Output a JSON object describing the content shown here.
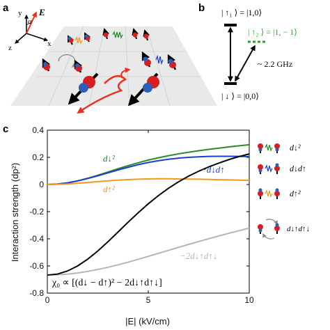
{
  "panels": {
    "a": "a",
    "b": "b",
    "c": "c"
  },
  "panel_a": {
    "axes": {
      "y": "y",
      "z": "z",
      "x": "x",
      "alpha": "α",
      "field": "E"
    }
  },
  "panel_b": {
    "state_up1": "| ↑₁ ⟩ = |1,0⟩",
    "state_up2": "| ↑₂ ⟩ = |1, − 1⟩",
    "state_down": "| ↓ ⟩ = |0,0⟩",
    "frequency": "~ 2.2 GHz",
    "accent_color": "#22aa22"
  },
  "legend_side": {
    "items": [
      {
        "label": "d↓²",
        "wave_color": "#2a8a2a"
      },
      {
        "label": "d↓d↑",
        "wave_color": "#1a3fd0"
      },
      {
        "label": "d↑²",
        "wave_color": "#f29a1e"
      },
      {
        "label": "d↓↑d↑↓",
        "wave_color": "#999999"
      }
    ]
  },
  "chart_data": {
    "type": "line",
    "xlabel": "|E| (kV/cm)",
    "ylabel": "Interaction strength (dp²)",
    "xlim": [
      0,
      10
    ],
    "ylim": [
      -0.8,
      0.4
    ],
    "xticks": [
      "0",
      "5",
      "10"
    ],
    "yticks": [
      "-0.8",
      "-0.6",
      "-0.4",
      "-0.2",
      "0",
      "0.2",
      "0.4"
    ],
    "grid": false,
    "formula": "χ₀ ∝ [(d↓ − d↑)² − 2d↓↑d↑↓]",
    "x": [
      0,
      0.5,
      1,
      1.5,
      2,
      2.5,
      3,
      3.5,
      4,
      4.5,
      5,
      5.5,
      6,
      6.5,
      7,
      7.5,
      8,
      8.5,
      9,
      9.5,
      10
    ],
    "series": [
      {
        "name": "d↓²",
        "color": "#2a8a2a",
        "values": [
          0,
          0.003,
          0.012,
          0.027,
          0.046,
          0.068,
          0.092,
          0.116,
          0.139,
          0.16,
          0.18,
          0.197,
          0.212,
          0.226,
          0.238,
          0.249,
          0.259,
          0.268,
          0.277,
          0.285,
          0.293
        ]
      },
      {
        "name": "−d↓d↑",
        "color": "#1a3fd0",
        "values": [
          0,
          0.003,
          0.012,
          0.026,
          0.044,
          0.064,
          0.086,
          0.107,
          0.127,
          0.146,
          0.162,
          0.175,
          0.186,
          0.194,
          0.2,
          0.204,
          0.207,
          0.208,
          0.208,
          0.207,
          0.205
        ]
      },
      {
        "name": "d↑²",
        "color": "#f29a1e",
        "values": [
          0,
          0.001,
          0.004,
          0.009,
          0.015,
          0.021,
          0.027,
          0.032,
          0.036,
          0.039,
          0.041,
          0.042,
          0.042,
          0.041,
          0.04,
          0.039,
          0.037,
          0.035,
          0.034,
          0.032,
          0.03
        ]
      },
      {
        "name": "−2d↓↑d↑↓",
        "color": "#b5b5b5",
        "values": [
          -0.667,
          -0.665,
          -0.66,
          -0.652,
          -0.64,
          -0.626,
          -0.61,
          -0.592,
          -0.572,
          -0.551,
          -0.529,
          -0.507,
          -0.485,
          -0.463,
          -0.441,
          -0.42,
          -0.399,
          -0.379,
          -0.359,
          -0.34,
          -0.321
        ]
      },
      {
        "name": "χ₀",
        "color": "#000000",
        "values": [
          -0.667,
          -0.66,
          -0.637,
          -0.6,
          -0.55,
          -0.49,
          -0.422,
          -0.35,
          -0.278,
          -0.208,
          -0.142,
          -0.082,
          -0.028,
          0.02,
          0.062,
          0.098,
          0.13,
          0.158,
          0.184,
          0.206,
          0.225
        ]
      }
    ]
  }
}
